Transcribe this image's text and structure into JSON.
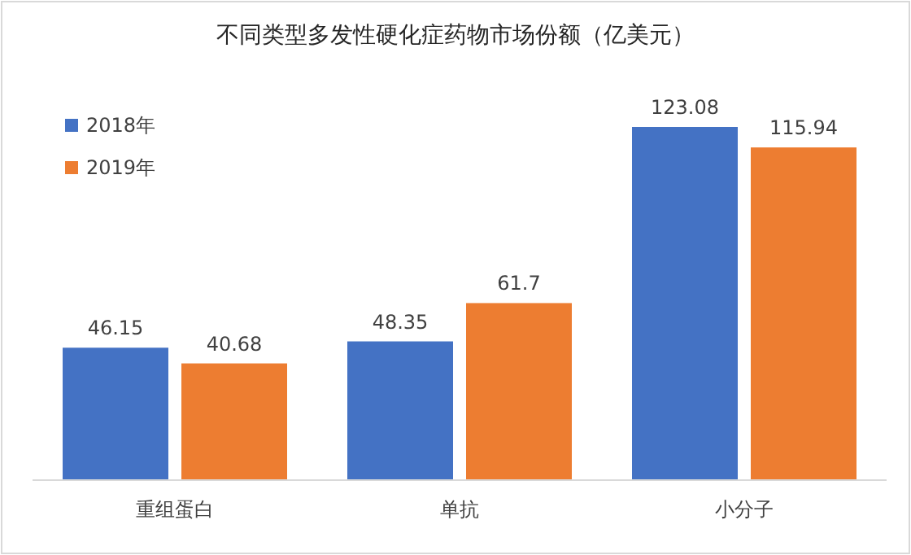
{
  "chart_data": {
    "type": "bar",
    "title": "不同类型多发性硬化症药物市场份额（亿美元）",
    "categories": [
      "重组蛋白",
      "单抗",
      "小分子"
    ],
    "series": [
      {
        "name": "2018年",
        "color": "#4472c4",
        "values": [
          46.15,
          48.35,
          123.08
        ]
      },
      {
        "name": "2019年",
        "color": "#ed7d31",
        "values": [
          40.68,
          61.7,
          115.94
        ]
      }
    ],
    "data_labels": true,
    "legend": "top left",
    "grid": false
  }
}
